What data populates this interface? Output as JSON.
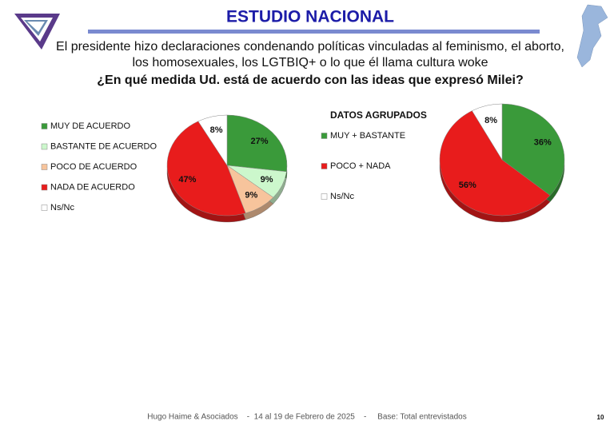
{
  "header": {
    "title": "ESTUDIO NACIONAL",
    "question": [
      "El presidente hizo declaraciones condenando políticas vinculadas al feminismo, el aborto,",
      "los homosexuales, los LGTBIQ+ o lo que él llama cultura woke",
      "¿En qué medida Ud. está de acuerdo con las ideas que expresó Milei?"
    ]
  },
  "chart_data": [
    {
      "type": "pie",
      "categories": [
        "MUY DE ACUERDO",
        "BASTANTE DE ACUERDO",
        "POCO DE ACUERDO",
        "NADA DE ACUERDO",
        "Ns/Nc"
      ],
      "values": [
        27,
        9,
        9,
        47,
        8
      ],
      "value_labels": [
        "27%",
        "9%",
        "9%",
        "47%",
        "8%"
      ],
      "colors": [
        "#3a9a3a",
        "#ccf7cc",
        "#f7c49c",
        "#e81c1c",
        "#ffffff"
      ]
    },
    {
      "type": "pie",
      "title": "DATOS AGRUPADOS",
      "categories": [
        "MUY + BASTANTE",
        "POCO + NADA",
        "Ns/Nc"
      ],
      "values": [
        36,
        56,
        8
      ],
      "value_labels": [
        "36%",
        "56%",
        "8%"
      ],
      "colors": [
        "#3a9a3a",
        "#e81c1c",
        "#ffffff"
      ]
    }
  ],
  "footer": {
    "text": "Hugo Haime & Asociados    -  14 al 19 de Febrero de 2025    -     Base: Total entrevistados",
    "page": "10"
  }
}
